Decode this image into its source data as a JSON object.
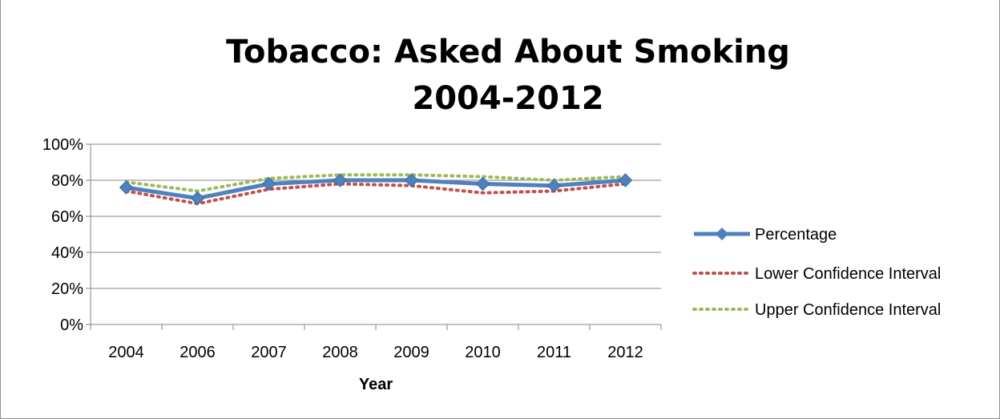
{
  "chart_data": {
    "type": "line",
    "title": "Tobacco: Asked About Smoking",
    "subtitle": "2004-2012",
    "xlabel": "Year",
    "ylabel": "",
    "categories": [
      "2004",
      "2006",
      "2007",
      "2008",
      "2009",
      "2010",
      "2011",
      "2012"
    ],
    "y_ticks": [
      "0%",
      "20%",
      "40%",
      "60%",
      "80%",
      "100%"
    ],
    "ylim": [
      0,
      100
    ],
    "grid": true,
    "legend_position": "right",
    "series": [
      {
        "name": "Percentage",
        "values": [
          76,
          70,
          78,
          80,
          80,
          78,
          77,
          80
        ],
        "color": "#4F81BD",
        "style": "solid-diamond"
      },
      {
        "name": "Lower Confidence Interval",
        "values": [
          74,
          67,
          75,
          78,
          77,
          73,
          74,
          78
        ],
        "color": "#C0504D",
        "style": "dotted"
      },
      {
        "name": "Upper Confidence Interval",
        "values": [
          79,
          74,
          81,
          83,
          83,
          82,
          80,
          82
        ],
        "color": "#9BBB59",
        "style": "dotted"
      }
    ]
  }
}
